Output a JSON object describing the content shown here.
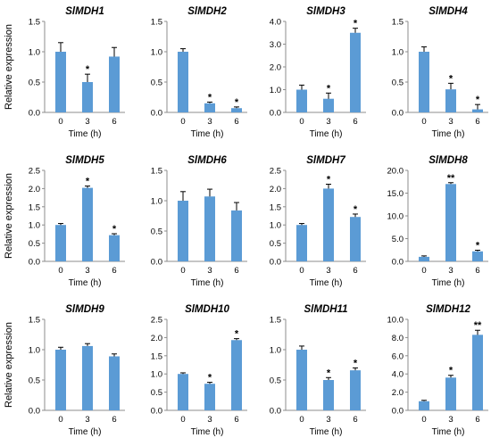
{
  "figure": {
    "ylabel": "Relative expression",
    "xlabel": "Time (h)",
    "bar_color": "#5b9bd5"
  },
  "chart_data": [
    {
      "type": "bar",
      "title": "SlMDH1",
      "categories": [
        "0",
        "3",
        "6"
      ],
      "values": [
        1.0,
        0.5,
        0.92
      ],
      "errors": [
        0.15,
        0.13,
        0.15
      ],
      "significance": [
        "",
        "*",
        ""
      ],
      "ylim": [
        0,
        1.5
      ],
      "yticks": [
        0,
        0.5,
        1.0,
        1.5
      ],
      "ytick_labels": [
        "0.0",
        "0.5",
        "1.0",
        "1.5"
      ],
      "xlabel": "Time (h)",
      "ylabel": "Relative expression"
    },
    {
      "type": "bar",
      "title": "SlMDH2",
      "categories": [
        "0",
        "3",
        "6"
      ],
      "values": [
        1.0,
        0.15,
        0.07
      ],
      "errors": [
        0.05,
        0.02,
        0.02
      ],
      "significance": [
        "",
        "*",
        "*"
      ],
      "ylim": [
        0,
        1.5
      ],
      "yticks": [
        0,
        0.5,
        1.0,
        1.5
      ],
      "ytick_labels": [
        "0.0",
        "0.5",
        "1.0",
        "1.5"
      ],
      "xlabel": "Time (h)",
      "ylabel": ""
    },
    {
      "type": "bar",
      "title": "SlMDH3",
      "categories": [
        "0",
        "3",
        "6"
      ],
      "values": [
        1.0,
        0.6,
        3.5
      ],
      "errors": [
        0.2,
        0.25,
        0.2
      ],
      "significance": [
        "",
        "*",
        "*"
      ],
      "ylim": [
        0,
        4.0
      ],
      "yticks": [
        0,
        1,
        2,
        3,
        4
      ],
      "ytick_labels": [
        "0.0",
        "1.0",
        "2.0",
        "3.0",
        "4.0"
      ],
      "xlabel": "Time (h)",
      "ylabel": ""
    },
    {
      "type": "bar",
      "title": "SlMDH4",
      "categories": [
        "0",
        "3",
        "6"
      ],
      "values": [
        1.0,
        0.38,
        0.05
      ],
      "errors": [
        0.08,
        0.1,
        0.08
      ],
      "significance": [
        "",
        "*",
        "*"
      ],
      "ylim": [
        0,
        1.5
      ],
      "yticks": [
        0,
        0.5,
        1.0,
        1.5
      ],
      "ytick_labels": [
        "0.0",
        "0.5",
        "1.0",
        "1.5"
      ],
      "xlabel": "Time (h)",
      "ylabel": ""
    },
    {
      "type": "bar",
      "title": "SlMDH5",
      "categories": [
        "0",
        "3",
        "6"
      ],
      "values": [
        1.0,
        2.02,
        0.72
      ],
      "errors": [
        0.04,
        0.05,
        0.04
      ],
      "significance": [
        "",
        "*",
        "*"
      ],
      "ylim": [
        0,
        2.5
      ],
      "yticks": [
        0,
        0.5,
        1.0,
        1.5,
        2.0,
        2.5
      ],
      "ytick_labels": [
        "0.0",
        "0.5",
        "1.0",
        "1.5",
        "2.0",
        "2.5"
      ],
      "xlabel": "Time (h)",
      "ylabel": "Relative expression"
    },
    {
      "type": "bar",
      "title": "SlMDH6",
      "categories": [
        "0",
        "3",
        "6"
      ],
      "values": [
        1.0,
        1.07,
        0.84
      ],
      "errors": [
        0.15,
        0.12,
        0.13
      ],
      "significance": [
        "",
        "",
        ""
      ],
      "ylim": [
        0,
        1.5
      ],
      "yticks": [
        0,
        0.5,
        1.0,
        1.5
      ],
      "ytick_labels": [
        "0.0",
        "0.5",
        "1.0",
        "1.5"
      ],
      "xlabel": "Time (h)",
      "ylabel": ""
    },
    {
      "type": "bar",
      "title": "SlMDH7",
      "categories": [
        "0",
        "3",
        "6"
      ],
      "values": [
        1.0,
        2.0,
        1.22
      ],
      "errors": [
        0.04,
        0.12,
        0.08
      ],
      "significance": [
        "",
        "*",
        "*"
      ],
      "ylim": [
        0,
        2.5
      ],
      "yticks": [
        0,
        0.5,
        1.0,
        1.5,
        2.0,
        2.5
      ],
      "ytick_labels": [
        "0.0",
        "0.5",
        "1.0",
        "1.5",
        "2.0",
        "2.5"
      ],
      "xlabel": "Time (h)",
      "ylabel": ""
    },
    {
      "type": "bar",
      "title": "SlMDH8",
      "categories": [
        "0",
        "3",
        "6"
      ],
      "values": [
        1.0,
        17.0,
        2.2
      ],
      "errors": [
        0.2,
        0.3,
        0.25
      ],
      "significance": [
        "",
        "**",
        "*"
      ],
      "ylim": [
        0,
        20
      ],
      "yticks": [
        0,
        5,
        10,
        15,
        20
      ],
      "ytick_labels": [
        "0.0",
        "5.0",
        "10.0",
        "15.0",
        "20.0"
      ],
      "xlabel": "Time (h)",
      "ylabel": ""
    },
    {
      "type": "bar",
      "title": "SlMDH9",
      "categories": [
        "0",
        "3",
        "6"
      ],
      "values": [
        1.0,
        1.06,
        0.89
      ],
      "errors": [
        0.04,
        0.04,
        0.04
      ],
      "significance": [
        "",
        "",
        ""
      ],
      "ylim": [
        0,
        1.5
      ],
      "yticks": [
        0,
        0.5,
        1.0,
        1.5
      ],
      "ytick_labels": [
        "0.0",
        "0.5",
        "1.0",
        "1.5"
      ],
      "xlabel": "Time (h)",
      "ylabel": "Relative expression"
    },
    {
      "type": "bar",
      "title": "SlMDH10",
      "categories": [
        "0",
        "3",
        "6"
      ],
      "values": [
        1.0,
        0.73,
        1.93
      ],
      "errors": [
        0.03,
        0.04,
        0.04
      ],
      "significance": [
        "",
        "*",
        "*"
      ],
      "ylim": [
        0,
        2.5
      ],
      "yticks": [
        0,
        0.5,
        1.0,
        1.5,
        2.0,
        2.5
      ],
      "ytick_labels": [
        "0.0",
        "0.5",
        "1.0",
        "1.5",
        "2.0",
        "2.5"
      ],
      "xlabel": "Time (h)",
      "ylabel": ""
    },
    {
      "type": "bar",
      "title": "SlMDH11",
      "categories": [
        "0",
        "3",
        "6"
      ],
      "values": [
        1.0,
        0.5,
        0.66
      ],
      "errors": [
        0.06,
        0.04,
        0.04
      ],
      "significance": [
        "",
        "*",
        "*"
      ],
      "ylim": [
        0,
        1.5
      ],
      "yticks": [
        0,
        0.5,
        1.0,
        1.5
      ],
      "ytick_labels": [
        "0.0",
        "0.5",
        "1.0",
        "1.5"
      ],
      "xlabel": "Time (h)",
      "ylabel": ""
    },
    {
      "type": "bar",
      "title": "SlMDH12",
      "categories": [
        "0",
        "3",
        "6"
      ],
      "values": [
        1.0,
        3.6,
        8.3
      ],
      "errors": [
        0.1,
        0.25,
        0.5
      ],
      "significance": [
        "",
        "*",
        "**"
      ],
      "ylim": [
        0,
        10
      ],
      "yticks": [
        0,
        2,
        4,
        6,
        8,
        10
      ],
      "ytick_labels": [
        "0.0",
        "2.0",
        "4.0",
        "6.0",
        "8.0",
        "10.0"
      ],
      "xlabel": "Time (h)",
      "ylabel": ""
    }
  ]
}
